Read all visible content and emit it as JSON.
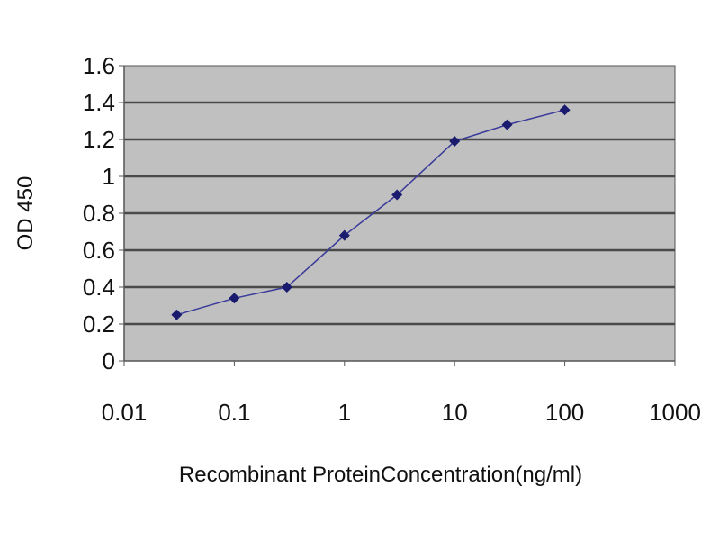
{
  "chart_data": {
    "type": "line",
    "title": "",
    "xlabel": "Recombinant ProteinConcentration(ng/ml)",
    "ylabel": "OD 450",
    "x_scale": "log",
    "xlim": [
      0.01,
      1000
    ],
    "ylim": [
      0,
      1.6
    ],
    "x_ticks": [
      "0.01",
      "0.1",
      "1",
      "10",
      "100",
      "1000"
    ],
    "y_ticks": [
      "0",
      "0.2",
      "0.4",
      "0.6",
      "0.8",
      "1",
      "1.2",
      "1.4",
      "1.6"
    ],
    "grid": "horizontal",
    "series": [
      {
        "x": [
          0.03,
          0.1,
          0.3,
          1,
          3,
          10,
          30,
          100
        ],
        "y": [
          0.25,
          0.34,
          0.4,
          0.68,
          0.9,
          1.19,
          1.28,
          1.36
        ],
        "color": "#3a3a9a",
        "marker_color": "#1a1a6e"
      }
    ],
    "colors": {
      "plot_background": "#c0c0c0",
      "gridline": "#4a4a4a",
      "axis": "#555555"
    }
  }
}
